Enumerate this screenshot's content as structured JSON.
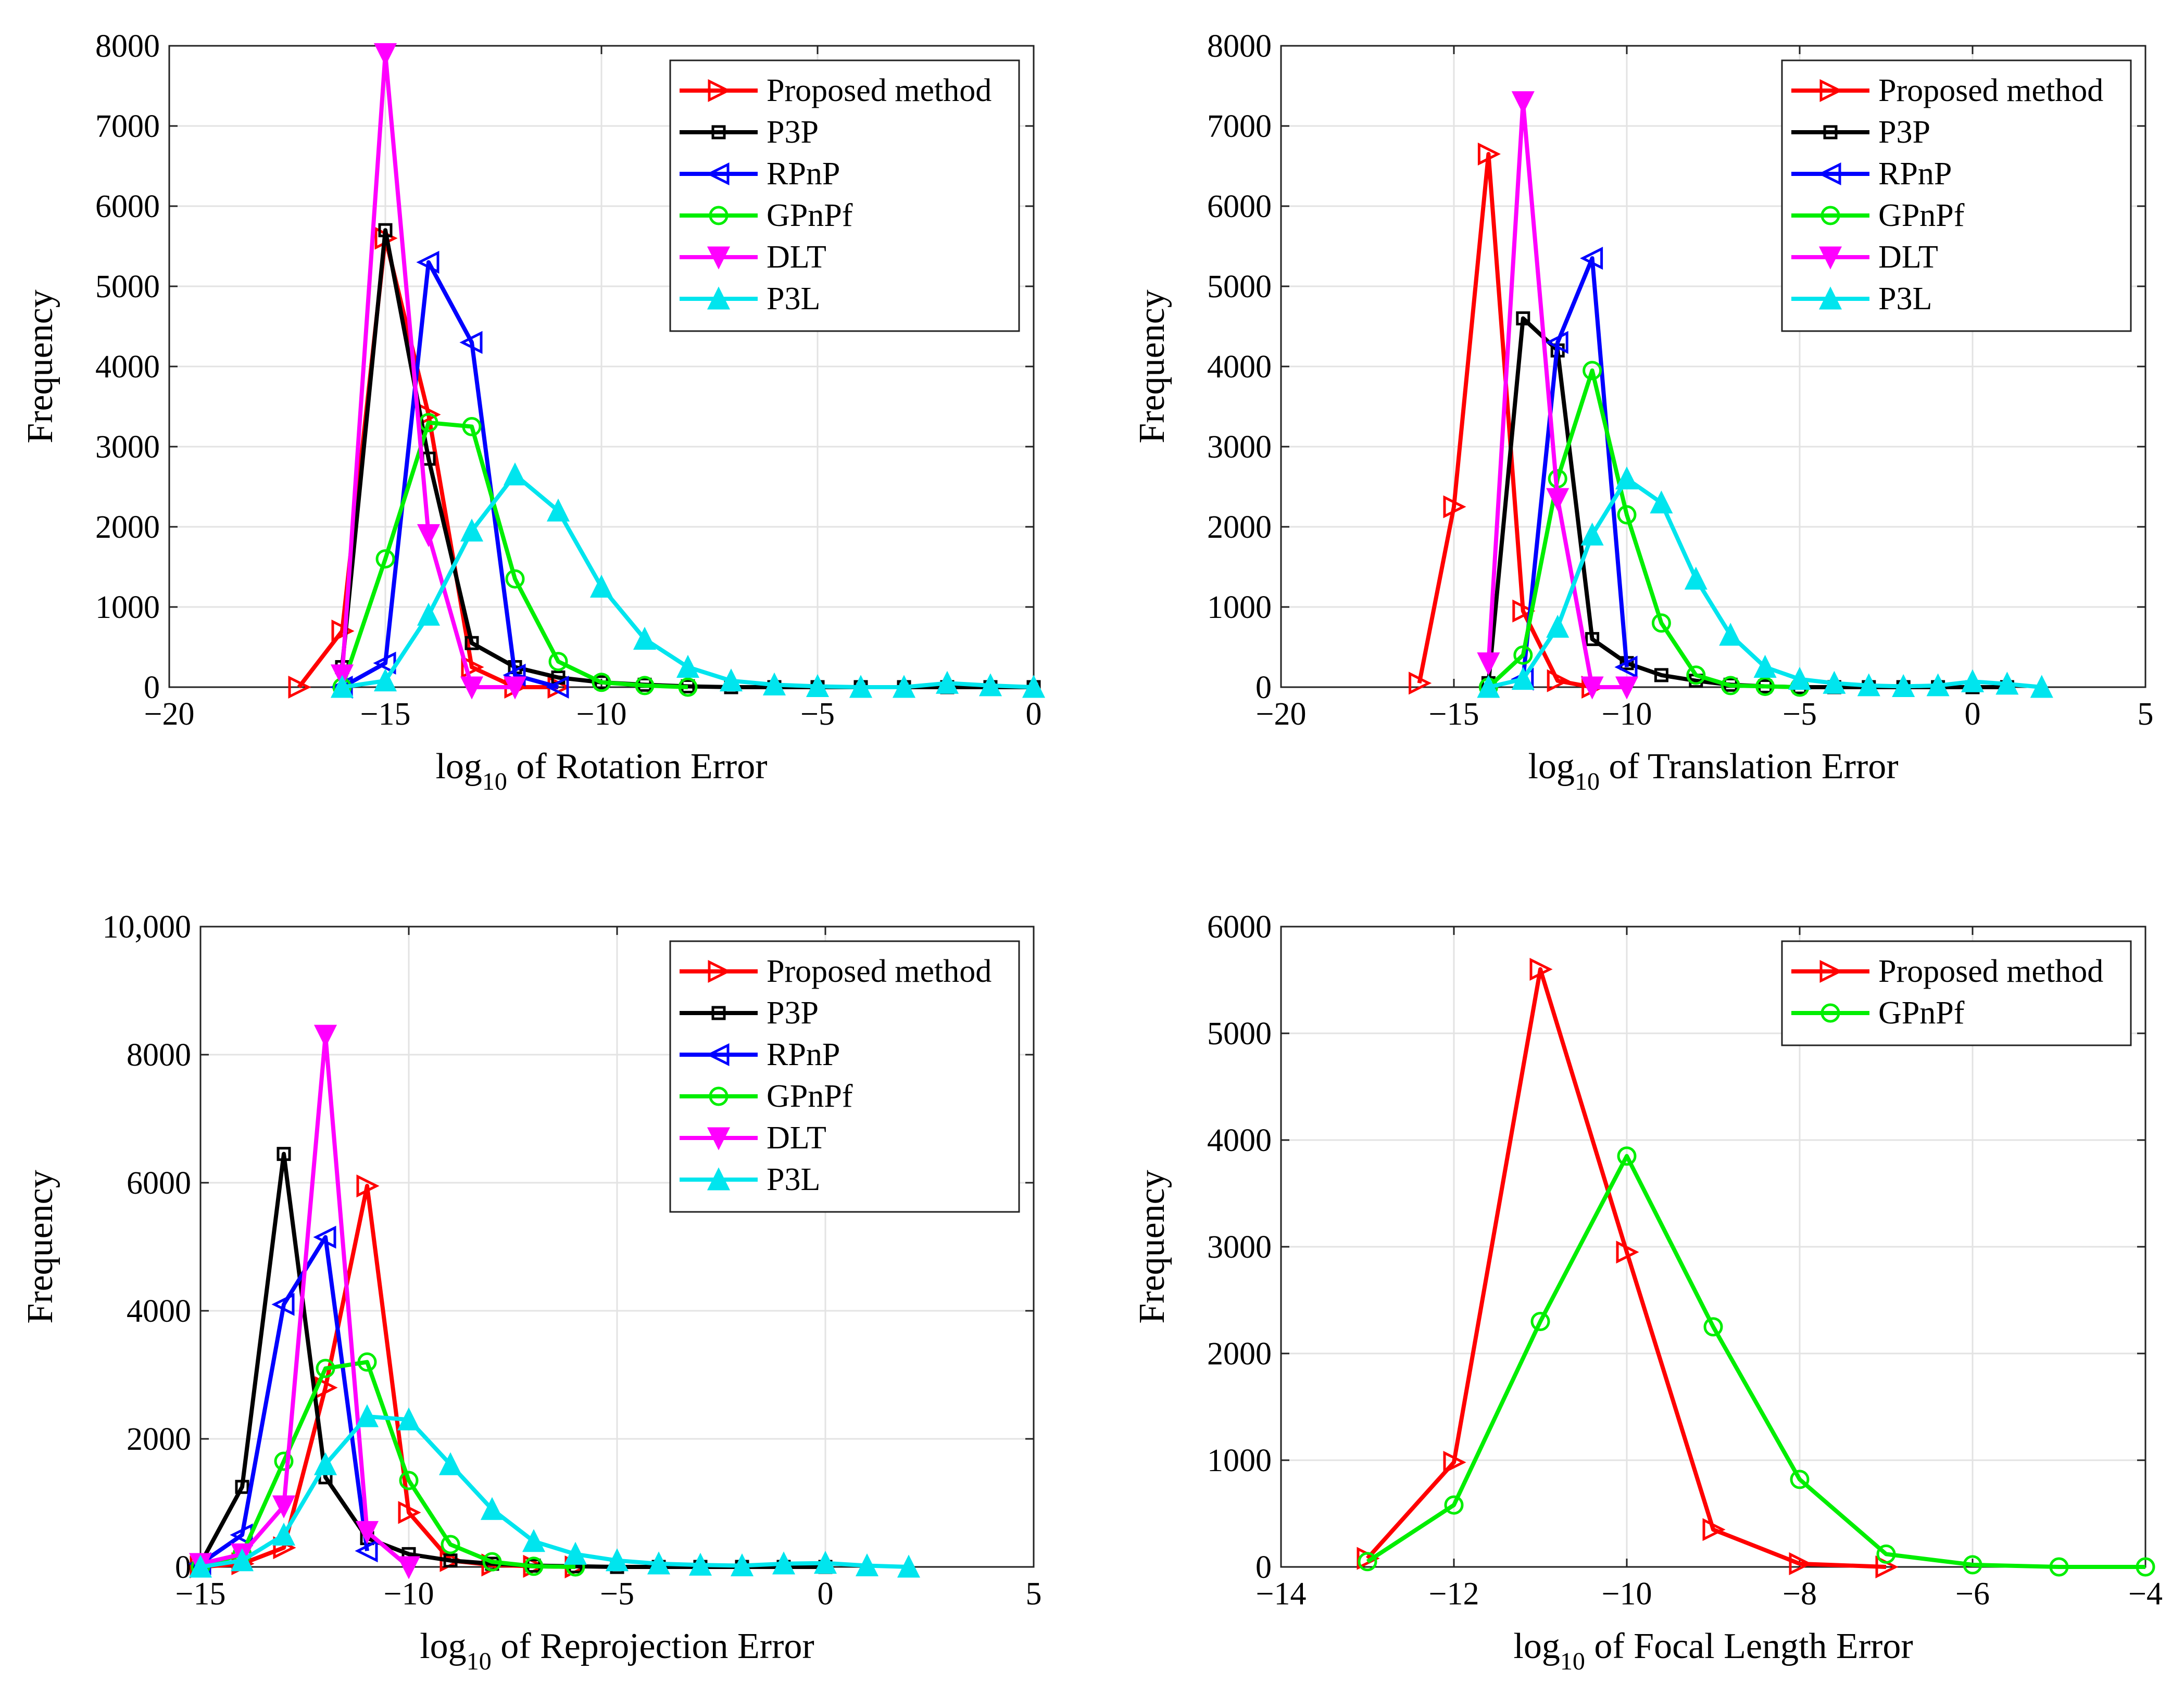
{
  "colors": {
    "proposed": "#ff0000",
    "p3p": "#000000",
    "rpnp": "#0000ff",
    "gpnpf": "#00ee00",
    "dlt": "#ff00ff",
    "p3l": "#00e5ee"
  },
  "chart_data": [
    {
      "type": "line",
      "id": "rotation",
      "ylabel": "Frequency",
      "xlabel_base": "log",
      "xlabel_sub": "10",
      "xlabel_rest": " of Rotation Error",
      "xlim": [
        -20,
        0
      ],
      "ylim": [
        0,
        8000
      ],
      "xticks": [
        -20,
        -15,
        -10,
        -5,
        0
      ],
      "yticks": [
        0,
        1000,
        2000,
        3000,
        4000,
        5000,
        6000,
        7000,
        8000
      ],
      "ytick_labels": [
        "0",
        "1000",
        "2000",
        "3000",
        "4000",
        "5000",
        "6000",
        "7000",
        "8000"
      ],
      "legend_position": "top-right",
      "series": [
        {
          "name": "Proposed method",
          "color_key": "proposed",
          "marker": "tri-right",
          "x": [
            -17,
            -16,
            -15,
            -14,
            -13,
            -12,
            -11
          ],
          "y": [
            0,
            700,
            5600,
            3400,
            250,
            0,
            0
          ]
        },
        {
          "name": "P3P",
          "color_key": "p3p",
          "marker": "square",
          "x": [
            -16,
            -15,
            -14,
            -13,
            -12,
            -11,
            -10,
            -9,
            -8,
            -7,
            -6,
            -5,
            -4,
            -3,
            -2,
            -1,
            0
          ],
          "y": [
            250,
            5700,
            2850,
            550,
            250,
            120,
            60,
            30,
            10,
            0,
            0,
            0,
            0,
            0,
            0,
            0,
            0
          ]
        },
        {
          "name": "RPnP",
          "color_key": "rpnp",
          "marker": "tri-left",
          "x": [
            -16,
            -15,
            -14,
            -13,
            -12,
            -11
          ],
          "y": [
            0,
            300,
            5300,
            4300,
            150,
            0
          ]
        },
        {
          "name": "GPnPf",
          "color_key": "gpnpf",
          "marker": "circle",
          "x": [
            -16,
            -15,
            -14,
            -13,
            -12,
            -11,
            -10,
            -9,
            -8
          ],
          "y": [
            0,
            1600,
            3300,
            3250,
            1350,
            320,
            60,
            20,
            0
          ]
        },
        {
          "name": "DLT",
          "color_key": "dlt",
          "marker": "tri-down",
          "x": [
            -16,
            -15,
            -14,
            -13,
            -12
          ],
          "y": [
            150,
            7900,
            1900,
            0,
            0
          ]
        },
        {
          "name": "P3L",
          "color_key": "p3l",
          "marker": "tri-up",
          "x": [
            -16,
            -15,
            -14,
            -13,
            -12,
            -11,
            -10,
            -9,
            -8,
            -7,
            -6,
            -5,
            -4,
            -3,
            -2,
            -1,
            0
          ],
          "y": [
            0,
            80,
            900,
            1950,
            2650,
            2200,
            1250,
            600,
            250,
            80,
            30,
            10,
            0,
            0,
            50,
            20,
            0
          ]
        }
      ]
    },
    {
      "type": "line",
      "id": "translation",
      "ylabel": "Frequency",
      "xlabel_base": "log",
      "xlabel_sub": "10",
      "xlabel_rest": " of Translation Error",
      "xlim": [
        -20,
        5
      ],
      "ylim": [
        0,
        8000
      ],
      "xticks": [
        -20,
        -15,
        -10,
        -5,
        0,
        5
      ],
      "yticks": [
        0,
        1000,
        2000,
        3000,
        4000,
        5000,
        6000,
        7000,
        8000
      ],
      "ytick_labels": [
        "0",
        "1000",
        "2000",
        "3000",
        "4000",
        "5000",
        "6000",
        "7000",
        "8000"
      ],
      "legend_position": "top-right",
      "series": [
        {
          "name": "Proposed method",
          "color_key": "proposed",
          "marker": "tri-right",
          "x": [
            -16,
            -15,
            -14,
            -13,
            -12,
            -11
          ],
          "y": [
            50,
            2250,
            6650,
            950,
            80,
            0
          ]
        },
        {
          "name": "P3P",
          "color_key": "p3p",
          "marker": "square",
          "x": [
            -14,
            -13,
            -12,
            -11,
            -10,
            -9,
            -8,
            -7,
            -6,
            -5,
            -4,
            -3,
            -2,
            -1,
            0,
            1
          ],
          "y": [
            50,
            4600,
            4200,
            600,
            300,
            150,
            80,
            30,
            10,
            0,
            0,
            0,
            0,
            0,
            0,
            0
          ]
        },
        {
          "name": "RPnP",
          "color_key": "rpnp",
          "marker": "tri-left",
          "x": [
            -13,
            -12,
            -11,
            -10
          ],
          "y": [
            100,
            4300,
            5350,
            250
          ]
        },
        {
          "name": "GPnPf",
          "color_key": "gpnpf",
          "marker": "circle",
          "x": [
            -14,
            -13,
            -12,
            -11,
            -10,
            -9,
            -8,
            -7,
            -6,
            -5
          ],
          "y": [
            0,
            400,
            2600,
            3950,
            2150,
            800,
            150,
            20,
            10,
            0
          ]
        },
        {
          "name": "DLT",
          "color_key": "dlt",
          "marker": "tri-down",
          "x": [
            -14,
            -13,
            -12,
            -11,
            -10
          ],
          "y": [
            300,
            7300,
            2350,
            0,
            0
          ]
        },
        {
          "name": "P3L",
          "color_key": "p3l",
          "marker": "tri-up",
          "x": [
            -14,
            -13,
            -12,
            -11,
            -10,
            -9,
            -8,
            -7,
            -6,
            -5,
            -4,
            -3,
            -2,
            -1,
            0,
            1,
            2
          ],
          "y": [
            0,
            100,
            750,
            1900,
            2600,
            2300,
            1350,
            650,
            250,
            100,
            50,
            20,
            10,
            20,
            70,
            40,
            0
          ]
        }
      ]
    },
    {
      "type": "line",
      "id": "reprojection",
      "ylabel": "Frequency",
      "xlabel_base": "log",
      "xlabel_sub": "10",
      "xlabel_rest": " of Reprojection Error",
      "xlim": [
        -15,
        5
      ],
      "ylim": [
        0,
        10000
      ],
      "xticks": [
        -15,
        -10,
        -5,
        0,
        5
      ],
      "yticks": [
        0,
        2000,
        4000,
        6000,
        8000,
        10000
      ],
      "ytick_labels": [
        "0",
        "2000",
        "4000",
        "6000",
        "8000",
        "10,000"
      ],
      "legend_position": "top-right",
      "series": [
        {
          "name": "Proposed method",
          "color_key": "proposed",
          "marker": "tri-right",
          "x": [
            -15,
            -14,
            -13,
            -12,
            -11,
            -10,
            -9,
            -8,
            -7,
            -6
          ],
          "y": [
            0,
            50,
            300,
            2800,
            5950,
            850,
            100,
            30,
            10,
            0
          ]
        },
        {
          "name": "P3P",
          "color_key": "p3p",
          "marker": "square",
          "x": [
            -15,
            -14,
            -13,
            -12,
            -11,
            -10,
            -9,
            -8,
            -7,
            -6,
            -5,
            -4,
            -3,
            -2,
            -1,
            0
          ],
          "y": [
            50,
            1250,
            6450,
            1400,
            450,
            200,
            100,
            50,
            20,
            10,
            0,
            0,
            0,
            0,
            0,
            0
          ]
        },
        {
          "name": "RPnP",
          "color_key": "rpnp",
          "marker": "tri-left",
          "x": [
            -15,
            -14,
            -13,
            -12,
            -11
          ],
          "y": [
            50,
            500,
            4100,
            5150,
            250
          ]
        },
        {
          "name": "GPnPf",
          "color_key": "gpnpf",
          "marker": "circle",
          "x": [
            -15,
            -14,
            -13,
            -12,
            -11,
            -10,
            -9,
            -8,
            -7,
            -6
          ],
          "y": [
            0,
            200,
            1650,
            3100,
            3200,
            1350,
            350,
            80,
            10,
            0
          ]
        },
        {
          "name": "DLT",
          "color_key": "dlt",
          "marker": "tri-down",
          "x": [
            -15,
            -14,
            -13,
            -12,
            -11,
            -10
          ],
          "y": [
            50,
            200,
            950,
            8300,
            550,
            0
          ]
        },
        {
          "name": "P3L",
          "color_key": "p3l",
          "marker": "tri-up",
          "x": [
            -15,
            -14,
            -13,
            -12,
            -11,
            -10,
            -9,
            -8,
            -7,
            -6,
            -5,
            -4,
            -3,
            -2,
            -1,
            0,
            1,
            2
          ],
          "y": [
            0,
            100,
            500,
            1600,
            2350,
            2300,
            1600,
            900,
            400,
            200,
            100,
            50,
            30,
            20,
            50,
            60,
            20,
            0
          ]
        }
      ]
    },
    {
      "type": "line",
      "id": "focal",
      "ylabel": "Frequency",
      "xlabel_base": "log",
      "xlabel_sub": "10",
      "xlabel_rest": " of Focal Length Error",
      "xlim": [
        -14,
        -4
      ],
      "ylim": [
        0,
        6000
      ],
      "xticks": [
        -14,
        -12,
        -10,
        -8,
        -6,
        -4
      ],
      "yticks": [
        0,
        1000,
        2000,
        3000,
        4000,
        5000,
        6000
      ],
      "ytick_labels": [
        "0",
        "1000",
        "2000",
        "3000",
        "4000",
        "5000",
        "6000"
      ],
      "legend_position": "top-right",
      "series": [
        {
          "name": "Proposed method",
          "color_key": "proposed",
          "marker": "tri-right",
          "x": [
            -13,
            -12,
            -11,
            -10,
            -9,
            -8,
            -7
          ],
          "y": [
            80,
            980,
            5600,
            2950,
            350,
            30,
            0
          ]
        },
        {
          "name": "GPnPf",
          "color_key": "gpnpf",
          "marker": "circle",
          "x": [
            -13,
            -12,
            -11,
            -10,
            -9,
            -8,
            -7,
            -6,
            -5,
            -4
          ],
          "y": [
            50,
            580,
            2300,
            3850,
            2250,
            820,
            120,
            20,
            0,
            0
          ]
        }
      ]
    }
  ]
}
